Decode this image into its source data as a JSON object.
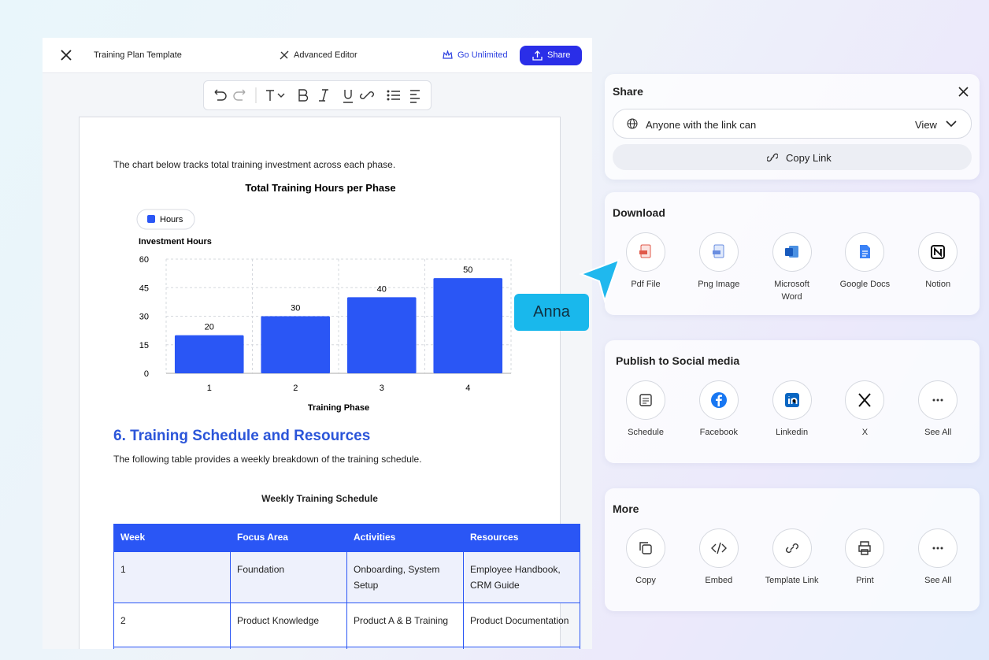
{
  "header": {
    "title": "Training Plan Template",
    "advanced_editor": "Advanced Editor",
    "go_unlimited": "Go Unlimited",
    "share": "Share"
  },
  "document": {
    "intro": "The chart below tracks total training investment across each phase.",
    "section_heading": "6. Training Schedule and Resources",
    "section_text": "The following table provides a weekly breakdown of the training schedule.",
    "table_title": "Weekly Training Schedule"
  },
  "chart_data": {
    "type": "bar",
    "title": "Total Training Hours per Phase",
    "ylabel": "Investment Hours",
    "xlabel": "Training Phase",
    "categories": [
      "1",
      "2",
      "3",
      "4"
    ],
    "series": [
      {
        "name": "Hours",
        "color": "#2a56f5",
        "values": [
          20,
          30,
          40,
          50
        ]
      }
    ],
    "ylim": [
      0,
      60
    ],
    "yticks": [
      0,
      15,
      30,
      45,
      60
    ],
    "grid": true,
    "legend": "top-left"
  },
  "table": {
    "columns": [
      "Week",
      "Focus Area",
      "Activities",
      "Resources"
    ],
    "rows": [
      [
        "1",
        "Foundation",
        "Onboarding, System Setup",
        "Employee Handbook, CRM Guide"
      ],
      [
        "2",
        "Product Knowledge",
        "Product A & B Training",
        "Product Documentation"
      ]
    ]
  },
  "share_panel": {
    "title": "Share",
    "access": "Anyone with the link can",
    "permission": "View",
    "copy_link": "Copy Link"
  },
  "download": {
    "title": "Download",
    "items": [
      "Pdf File",
      "Png Image",
      "Microsoft Word",
      "Google Docs",
      "Notion"
    ]
  },
  "social": {
    "title": "Publish to Social media",
    "items": [
      "Schedule",
      "Facebook",
      "Linkedin",
      "X",
      "See All"
    ]
  },
  "more": {
    "title": "More",
    "items": [
      "Copy",
      "Embed",
      "Template Link",
      "Print",
      "See All"
    ]
  },
  "cursor_label": "Anna"
}
